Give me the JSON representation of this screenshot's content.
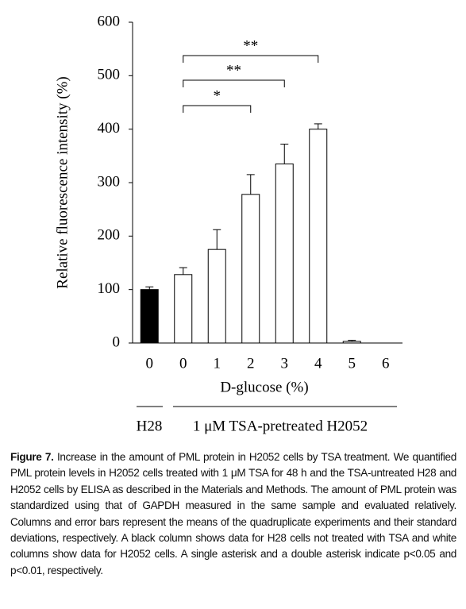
{
  "chart_data": {
    "type": "bar",
    "y_label": "Relative fluorescence intensity (%)",
    "x_label": "D-glucose (%)",
    "categories": [
      "0",
      "0",
      "1",
      "2",
      "3",
      "4",
      "5",
      "6"
    ],
    "values": [
      100,
      128,
      175,
      278,
      335,
      400,
      3,
      0
    ],
    "errors": [
      5,
      13,
      37,
      37,
      37,
      10,
      2,
      0
    ],
    "colors": [
      "#000000",
      "#ffffff",
      "#ffffff",
      "#ffffff",
      "#ffffff",
      "#ffffff",
      "#ffffff",
      "#ffffff"
    ],
    "ylim": [
      0,
      600
    ],
    "yticks": [
      0,
      100,
      200,
      300,
      400,
      500,
      600
    ],
    "grid": false,
    "groups": [
      {
        "label": "H28"
      },
      {
        "label": "1 μM TSA-pretreated H2052"
      }
    ],
    "significance": [
      {
        "label": "*"
      },
      {
        "label": "**"
      },
      {
        "label": "**"
      }
    ]
  },
  "caption": {
    "label": "Figure 7.",
    "text": "Increase in the amount of PML protein in H2052 cells by TSA treatment. We quantified PML protein levels in H2052 cells treated with 1 μM TSA for 48 h and the TSA-untreated H28 and H2052 cells by ELISA as described in the Materials and Methods. The amount of PML protein was standardized using that of GAPDH measured in the same sample and evaluated relatively. Columns and error bars represent the means of the quadruplicate experiments and their standard deviations, respectively. A black column shows data for H28 cells not treated with TSA and white columns show data for H2052 cells. A single asterisk and a double asterisk indicate p<0.05 and p<0.01, respectively."
  }
}
